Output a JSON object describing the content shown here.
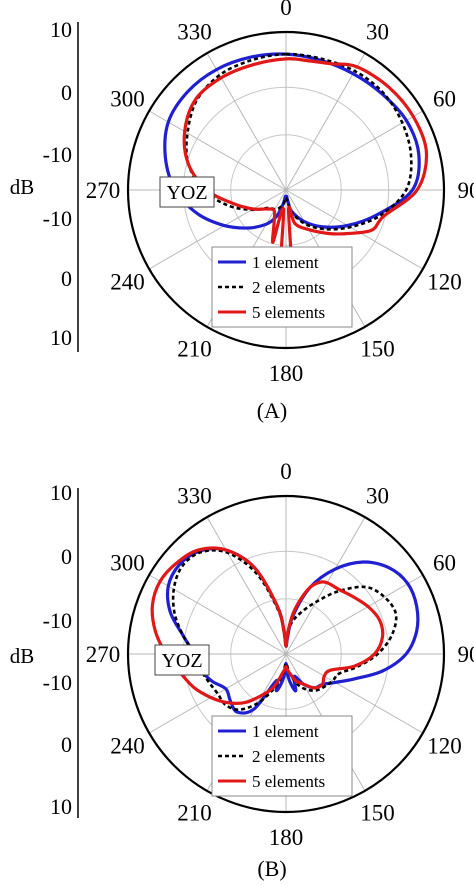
{
  "chart_data": [
    {
      "type": "polar",
      "caption": "(A)",
      "unit_label": "dB",
      "plane_label": "YOZ",
      "radial_ticks": [
        "10",
        "0",
        "-10",
        "-10",
        "0",
        "10"
      ],
      "angle_labels": [
        "0",
        "30",
        "60",
        "90",
        "120",
        "150",
        "180",
        "210",
        "240",
        "270",
        "300",
        "330"
      ],
      "grid": true,
      "legend_position": "bottom-inside",
      "series": [
        {
          "name": "1 element",
          "color": "#2020d0",
          "dash": "solid",
          "angles": [
            0,
            15,
            30,
            45,
            60,
            75,
            90,
            105,
            120,
            135,
            150,
            165,
            170,
            175,
            180,
            185,
            190,
            195,
            200,
            210,
            225,
            240,
            255,
            270,
            285,
            300,
            315,
            330,
            345
          ],
          "radius": [
            0.86,
            0.85,
            0.85,
            0.86,
            0.88,
            0.87,
            0.8,
            0.6,
            0.45,
            0.33,
            0.23,
            0.14,
            0.08,
            0.04,
            0.06,
            0.04,
            0.08,
            0.12,
            0.18,
            0.25,
            0.34,
            0.45,
            0.58,
            0.7,
            0.79,
            0.86,
            0.88,
            0.88,
            0.87
          ]
        },
        {
          "name": "2 elements",
          "color": "#000000",
          "dash": "dashed",
          "angles": [
            0,
            15,
            30,
            45,
            60,
            75,
            90,
            105,
            120,
            135,
            150,
            165,
            175,
            180,
            185,
            190,
            200,
            210,
            225,
            240,
            255,
            270,
            285,
            300,
            315,
            330,
            345
          ],
          "radius": [
            0.86,
            0.86,
            0.87,
            0.87,
            0.85,
            0.82,
            0.76,
            0.62,
            0.47,
            0.35,
            0.25,
            0.15,
            0.06,
            0.05,
            0.06,
            0.09,
            0.12,
            0.14,
            0.16,
            0.25,
            0.38,
            0.52,
            0.64,
            0.72,
            0.8,
            0.84,
            0.85
          ]
        },
        {
          "name": "5 elements",
          "color": "#e01818",
          "dash": "solid",
          "angles": [
            0,
            10,
            20,
            30,
            45,
            60,
            75,
            90,
            105,
            115,
            125,
            135,
            150,
            165,
            172,
            176,
            180,
            184,
            188,
            194,
            200,
            210,
            225,
            240,
            255,
            270,
            285,
            300,
            315,
            330,
            345
          ],
          "radius": [
            0.83,
            0.83,
            0.85,
            0.9,
            0.92,
            0.93,
            0.92,
            0.83,
            0.64,
            0.6,
            0.48,
            0.39,
            0.29,
            0.22,
            0.12,
            0.5,
            0.55,
            0.5,
            0.12,
            0.34,
            0.22,
            0.15,
            0.17,
            0.24,
            0.34,
            0.5,
            0.64,
            0.74,
            0.81,
            0.82,
            0.82
          ]
        }
      ]
    },
    {
      "type": "polar",
      "caption": "(B)",
      "unit_label": "dB",
      "plane_label": "YOZ",
      "radial_ticks": [
        "10",
        "0",
        "-10",
        "-10",
        "0",
        "10"
      ],
      "angle_labels": [
        "0",
        "30",
        "60",
        "90",
        "120",
        "150",
        "180",
        "210",
        "240",
        "270",
        "300",
        "330"
      ],
      "grid": true,
      "legend_position": "bottom-inside",
      "series": [
        {
          "name": "1 element",
          "color": "#2020d0",
          "dash": "solid",
          "angles": [
            0,
            5,
            10,
            20,
            30,
            40,
            50,
            60,
            70,
            80,
            90,
            100,
            110,
            120,
            130,
            140,
            150,
            160,
            165,
            170,
            175,
            180,
            185,
            190,
            195,
            200,
            210,
            220,
            230,
            240,
            250,
            260,
            270,
            280,
            290,
            300,
            310,
            320,
            330,
            340,
            350,
            355
          ],
          "radius": [
            0.05,
            0.1,
            0.24,
            0.45,
            0.62,
            0.76,
            0.85,
            0.89,
            0.88,
            0.84,
            0.76,
            0.62,
            0.46,
            0.36,
            0.3,
            0.28,
            0.22,
            0.15,
            0.24,
            0.2,
            0.14,
            0.06,
            0.14,
            0.2,
            0.24,
            0.18,
            0.4,
            0.48,
            0.46,
            0.44,
            0.5,
            0.55,
            0.58,
            0.66,
            0.78,
            0.86,
            0.88,
            0.85,
            0.76,
            0.58,
            0.3,
            0.15
          ]
        },
        {
          "name": "2 elements",
          "color": "#000000",
          "dash": "dashed",
          "angles": [
            0,
            5,
            10,
            20,
            30,
            40,
            50,
            60,
            70,
            80,
            90,
            100,
            110,
            120,
            130,
            140,
            150,
            160,
            170,
            180,
            190,
            200,
            210,
            220,
            230,
            240,
            250,
            260,
            270,
            280,
            290,
            300,
            310,
            320,
            330,
            340,
            350,
            355
          ],
          "radius": [
            0.05,
            0.12,
            0.2,
            0.28,
            0.38,
            0.52,
            0.66,
            0.72,
            0.74,
            0.68,
            0.58,
            0.46,
            0.36,
            0.34,
            0.32,
            0.3,
            0.26,
            0.2,
            0.12,
            0.06,
            0.14,
            0.24,
            0.36,
            0.46,
            0.5,
            0.5,
            0.52,
            0.55,
            0.58,
            0.66,
            0.75,
            0.82,
            0.86,
            0.84,
            0.74,
            0.54,
            0.28,
            0.12
          ]
        },
        {
          "name": "5 elements",
          "color": "#e01818",
          "dash": "solid",
          "angles": [
            0,
            5,
            10,
            15,
            20,
            25,
            30,
            40,
            50,
            60,
            70,
            80,
            90,
            100,
            110,
            120,
            130,
            140,
            150,
            160,
            170,
            175,
            180,
            185,
            190,
            200,
            210,
            220,
            230,
            240,
            250,
            260,
            270,
            280,
            290,
            300,
            310,
            320,
            330,
            340,
            350,
            355
          ],
          "radius": [
            0.05,
            0.14,
            0.26,
            0.36,
            0.45,
            0.5,
            0.52,
            0.53,
            0.56,
            0.6,
            0.63,
            0.62,
            0.56,
            0.44,
            0.3,
            0.28,
            0.3,
            0.28,
            0.22,
            0.18,
            0.12,
            0.1,
            0.08,
            0.1,
            0.12,
            0.22,
            0.3,
            0.4,
            0.48,
            0.55,
            0.62,
            0.68,
            0.76,
            0.84,
            0.9,
            0.92,
            0.9,
            0.86,
            0.76,
            0.58,
            0.3,
            0.14
          ]
        }
      ]
    }
  ]
}
